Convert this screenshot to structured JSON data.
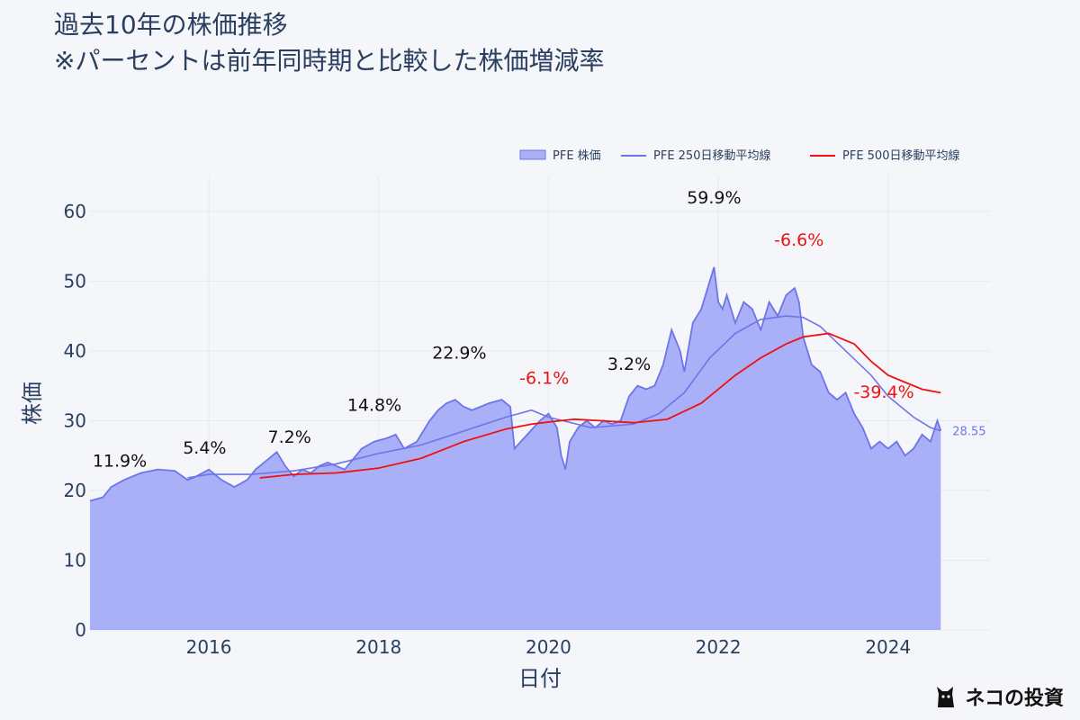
{
  "title": {
    "line1": "過去10年の株価推移",
    "line2": "※パーセントは前年同時期と比較した株価増減率"
  },
  "logo": {
    "text": "ネコの投資",
    "icon": "cat-icon"
  },
  "colors": {
    "price_fill": "#a9b0f7",
    "price_line": "#6d75e8",
    "ma250": "#6d75e8",
    "ma500": "#ee1111",
    "positive_label": "#111111",
    "negative_label": "#ee1111",
    "axis_text": "#2a3f5f",
    "grid": "#e6e9f2"
  },
  "chart_data": {
    "type": "area",
    "title": "過去10年の株価推移",
    "xlabel": "日付",
    "ylabel": "株価",
    "xlim": [
      2014.6,
      2025.2
    ],
    "ylim": [
      0,
      65
    ],
    "x_ticks": [
      2016,
      2018,
      2020,
      2022,
      2024
    ],
    "x_tick_labels": [
      "2016",
      "2018",
      "2020",
      "2022",
      "2024"
    ],
    "y_ticks": [
      0,
      10,
      20,
      30,
      40,
      50,
      60
    ],
    "y_tick_labels": [
      "0",
      "10",
      "20",
      "30",
      "40",
      "50",
      "60"
    ],
    "legend": [
      "PFE 株価",
      "PFE 250日移動平均線",
      "PFE 500日移動平均線"
    ],
    "legend_position": "top-right",
    "series": [
      {
        "name": "PFE 株価",
        "kind": "area",
        "x": [
          2014.6,
          2014.75,
          2014.85,
          2015.0,
          2015.2,
          2015.4,
          2015.6,
          2015.75,
          2015.85,
          2016.0,
          2016.15,
          2016.3,
          2016.45,
          2016.55,
          2016.7,
          2016.8,
          2016.9,
          2017.0,
          2017.1,
          2017.2,
          2017.3,
          2017.4,
          2017.5,
          2017.6,
          2017.7,
          2017.8,
          2017.95,
          2018.1,
          2018.2,
          2018.3,
          2018.45,
          2018.6,
          2018.7,
          2018.8,
          2018.9,
          2019.0,
          2019.1,
          2019.2,
          2019.3,
          2019.45,
          2019.55,
          2019.6,
          2019.75,
          2019.9,
          2020.0,
          2020.1,
          2020.15,
          2020.2,
          2020.25,
          2020.35,
          2020.45,
          2020.55,
          2020.65,
          2020.75,
          2020.85,
          2020.95,
          2021.05,
          2021.15,
          2021.25,
          2021.35,
          2021.45,
          2021.55,
          2021.6,
          2021.7,
          2021.8,
          2021.9,
          2021.95,
          2022.0,
          2022.05,
          2022.1,
          2022.2,
          2022.3,
          2022.4,
          2022.5,
          2022.6,
          2022.7,
          2022.8,
          2022.9,
          2022.95,
          2023.0,
          2023.1,
          2023.2,
          2023.3,
          2023.4,
          2023.5,
          2023.6,
          2023.7,
          2023.8,
          2023.9,
          2024.0,
          2024.1,
          2024.2,
          2024.3,
          2024.4,
          2024.5,
          2024.58,
          2024.62
        ],
        "values": [
          18.5,
          19,
          20.5,
          21.5,
          22.5,
          23,
          22.8,
          21.5,
          22,
          23,
          21.5,
          20.5,
          21.5,
          23,
          24.5,
          25.5,
          23.5,
          22,
          23,
          22.5,
          23.5,
          24,
          23.5,
          23,
          24.5,
          26,
          27,
          27.5,
          28,
          26,
          27,
          30,
          31.5,
          32.5,
          33,
          32,
          31.5,
          32,
          32.5,
          33,
          32,
          26,
          28,
          30,
          31,
          29,
          25,
          23,
          27,
          29,
          30,
          29,
          30,
          29.5,
          30,
          33.5,
          35,
          34.5,
          35,
          38,
          43,
          40,
          37,
          44,
          46,
          50,
          52,
          47,
          46,
          48,
          44,
          47,
          46,
          43,
          47,
          45,
          48,
          49,
          47,
          42,
          38,
          37,
          34,
          33,
          34,
          31,
          29,
          26,
          27,
          26,
          27,
          25,
          26,
          28,
          27,
          30,
          28.55
        ]
      },
      {
        "name": "PFE 250日移動平均線",
        "kind": "line",
        "x": [
          2015.75,
          2016.0,
          2016.5,
          2017.0,
          2017.5,
          2018.0,
          2018.5,
          2019.0,
          2019.5,
          2019.8,
          2020.0,
          2020.5,
          2021.0,
          2021.3,
          2021.6,
          2021.9,
          2022.2,
          2022.5,
          2022.8,
          2023.0,
          2023.2,
          2023.5,
          2023.8,
          2024.0,
          2024.3,
          2024.5,
          2024.62
        ],
        "values": [
          21.8,
          22.3,
          22.3,
          22.8,
          23.8,
          25.3,
          26.5,
          28.5,
          30.5,
          31.5,
          30.5,
          29.0,
          29.5,
          31,
          34,
          39,
          42.5,
          44.5,
          45,
          44.8,
          43.5,
          40,
          36.5,
          33.5,
          30.5,
          29,
          28.55
        ]
      },
      {
        "name": "PFE 500日移動平均線",
        "kind": "line",
        "x": [
          2016.6,
          2017.0,
          2017.5,
          2018.0,
          2018.5,
          2019.0,
          2019.5,
          2019.8,
          2020.0,
          2020.3,
          2020.6,
          2021.0,
          2021.4,
          2021.8,
          2022.2,
          2022.5,
          2022.8,
          2023.0,
          2023.3,
          2023.6,
          2023.8,
          2024.0,
          2024.2,
          2024.4,
          2024.62
        ],
        "values": [
          21.8,
          22.3,
          22.5,
          23.2,
          24.6,
          27,
          28.8,
          29.5,
          29.8,
          30.2,
          30,
          29.7,
          30.2,
          32.5,
          36.5,
          39,
          41,
          42,
          42.5,
          41,
          38.5,
          36.5,
          35.5,
          34.5,
          34
        ]
      }
    ],
    "last_value_label": "28.55",
    "annotations": [
      {
        "text": "11.9%",
        "x": 2014.95,
        "y": 23.4,
        "sign": "positive"
      },
      {
        "text": "5.4%",
        "x": 2015.95,
        "y": 25.3,
        "sign": "positive"
      },
      {
        "text": "7.2%",
        "x": 2016.95,
        "y": 26.8,
        "sign": "positive"
      },
      {
        "text": "14.8%",
        "x": 2017.95,
        "y": 31.4,
        "sign": "positive"
      },
      {
        "text": "22.9%",
        "x": 2018.95,
        "y": 38.9,
        "sign": "positive"
      },
      {
        "text": "-6.1%",
        "x": 2019.95,
        "y": 35.3,
        "sign": "negative"
      },
      {
        "text": "3.2%",
        "x": 2020.95,
        "y": 37.3,
        "sign": "positive"
      },
      {
        "text": "59.9%",
        "x": 2021.95,
        "y": 61.1,
        "sign": "positive"
      },
      {
        "text": "-6.6%",
        "x": 2022.95,
        "y": 55.1,
        "sign": "negative"
      },
      {
        "text": "-39.4%",
        "x": 2023.95,
        "y": 33.3,
        "sign": "negative"
      }
    ]
  }
}
